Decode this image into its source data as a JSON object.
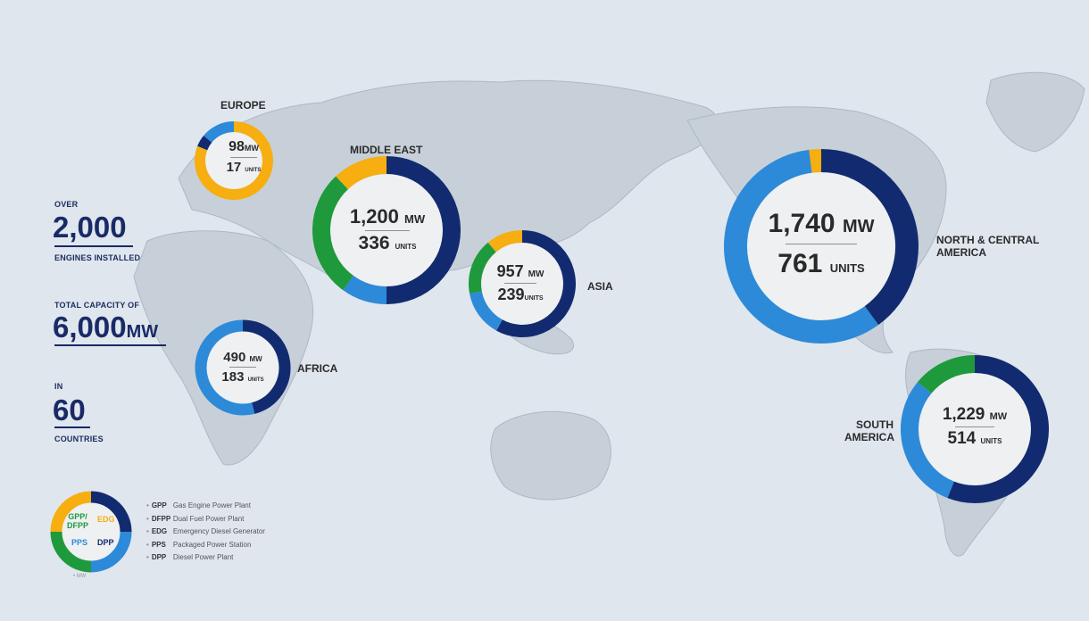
{
  "colors": {
    "gpp_dfpp": "#1e9a3c",
    "edg": "#f6ae10",
    "pps": "#2d8ad8",
    "dpp": "#122b70",
    "ocean": "#dfe6ee",
    "land": "#c9d2da"
  },
  "stats": {
    "engines_prefix": "OVER",
    "engines_value": "2,000",
    "engines_caption": "ENGINES INSTALLED",
    "capacity_prefix": "TOTAL CAPACITY OF",
    "capacity_value": "6,000",
    "capacity_unit": "MW",
    "countries_prefix": "IN",
    "countries_value": "60",
    "countries_caption": "COUNTRIES"
  },
  "regions": {
    "europe": {
      "name": "EUROPE",
      "mw": "98",
      "mw_unit": "MW",
      "units": "17",
      "units_label": "UNITS",
      "segments": [
        {
          "type": "edg",
          "fraction": 0.81
        },
        {
          "type": "dpp",
          "fraction": 0.05
        },
        {
          "type": "pps",
          "fraction": 0.14
        }
      ]
    },
    "middle_east": {
      "name": "MIDDLE EAST",
      "mw": "1,200",
      "mw_unit": "MW",
      "units": "336",
      "units_label": "UNITS",
      "segments": [
        {
          "type": "dpp",
          "fraction": 0.5
        },
        {
          "type": "pps",
          "fraction": 0.1
        },
        {
          "type": "gpp_dfpp",
          "fraction": 0.28
        },
        {
          "type": "edg",
          "fraction": 0.12
        }
      ]
    },
    "asia": {
      "name": "ASIA",
      "mw": "957",
      "mw_unit": "MW",
      "units": "239",
      "units_label": "UNITS",
      "segments": [
        {
          "type": "dpp",
          "fraction": 0.58
        },
        {
          "type": "pps",
          "fraction": 0.14
        },
        {
          "type": "gpp_dfpp",
          "fraction": 0.17
        },
        {
          "type": "edg",
          "fraction": 0.11
        }
      ]
    },
    "africa": {
      "name": "AFRICA",
      "mw": "490",
      "mw_unit": "MW",
      "units": "183",
      "units_label": "UNITS",
      "segments": [
        {
          "type": "dpp",
          "fraction": 0.46
        },
        {
          "type": "pps",
          "fraction": 0.54
        }
      ]
    },
    "north_central_america": {
      "name_line1": "NORTH & CENTRAL",
      "name_line2": "AMERICA",
      "mw": "1,740",
      "mw_unit": "MW",
      "units": "761",
      "units_label": "UNITS",
      "segments": [
        {
          "type": "dpp",
          "fraction": 0.4
        },
        {
          "type": "pps",
          "fraction": 0.58
        },
        {
          "type": "edg",
          "fraction": 0.02
        }
      ]
    },
    "south_america": {
      "name_line1": "SOUTH",
      "name_line2": "AMERICA",
      "mw": "1,229",
      "mw_unit": "MW",
      "units": "514",
      "units_label": "UNITS",
      "segments": [
        {
          "type": "dpp",
          "fraction": 0.56
        },
        {
          "type": "pps",
          "fraction": 0.3
        },
        {
          "type": "gpp_dfpp",
          "fraction": 0.14
        }
      ]
    }
  },
  "legend": {
    "donut_labels": {
      "gpp_line1": "GPP/",
      "gpp_line2": "DFPP",
      "edg": "EDG",
      "pps": "PPS",
      "dpp": "DPP"
    },
    "footnote": "• MW",
    "items": [
      {
        "code": "GPP",
        "desc": "Gas Engine Power Plant"
      },
      {
        "code": "DFPP",
        "desc": "Dual Fuel Power Plant"
      },
      {
        "code": "EDG",
        "desc": "Emergency Diesel Generator"
      },
      {
        "code": "PPS",
        "desc": "Packaged Power Station"
      },
      {
        "code": "DPP",
        "desc": "Diesel Power Plant"
      }
    ]
  }
}
